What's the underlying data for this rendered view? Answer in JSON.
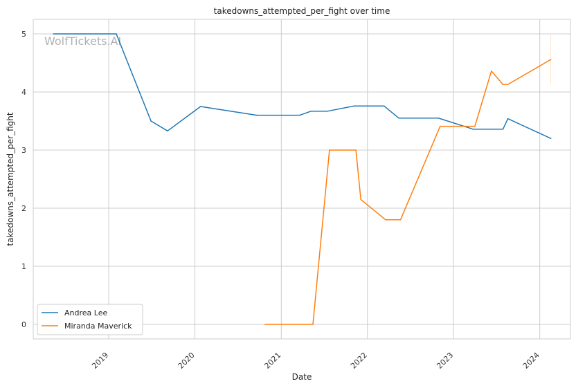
{
  "chart_data": {
    "type": "line",
    "title": "takedowns_attempted_per_fight over time",
    "xlabel": "Date",
    "ylabel": "takedowns_attempted_per_fight",
    "watermark": "WolfTickets.AI",
    "x_ticks": [
      "2019",
      "2020",
      "2021",
      "2022",
      "2023",
      "2024"
    ],
    "y_ticks": [
      "0",
      "1",
      "2",
      "3",
      "4",
      "5"
    ],
    "xlim": [
      "2018-02-15",
      "2024-05-10"
    ],
    "ylim": [
      -0.25,
      5.25
    ],
    "grid": true,
    "legend_position": "lower-left",
    "colors": {
      "Andrea Lee": "#1f77b4",
      "Miranda Maverick": "#ff7f0e"
    },
    "series": [
      {
        "name": "Andrea Lee",
        "x": [
          "2018-05-12",
          "2019-02-02",
          "2019-06-29",
          "2019-09-07",
          "2020-01-25",
          "2020-09-19",
          "2021-03-20",
          "2021-05-08",
          "2021-07-17",
          "2021-11-06",
          "2022-03-12",
          "2022-05-14",
          "2022-10-29",
          "2023-03-25",
          "2023-07-29",
          "2023-08-19",
          "2024-02-17"
        ],
        "values": [
          5.0,
          5.0,
          3.5,
          3.33,
          3.75,
          3.6,
          3.6,
          3.67,
          3.67,
          3.76,
          3.76,
          3.55,
          3.55,
          3.36,
          3.36,
          3.54,
          3.2
        ]
      },
      {
        "name": "Miranda Maverick",
        "x": [
          "2020-10-24",
          "2021-05-15",
          "2021-07-24",
          "2021-11-13",
          "2021-12-04",
          "2022-03-19",
          "2022-05-21",
          "2022-11-05",
          "2023-04-01",
          "2023-06-10",
          "2023-07-29",
          "2023-08-19",
          "2024-02-17"
        ],
        "values": [
          0.0,
          0.0,
          3.0,
          3.0,
          2.15,
          1.8,
          1.8,
          3.41,
          3.41,
          4.36,
          4.13,
          4.13,
          4.56
        ]
      }
    ]
  }
}
